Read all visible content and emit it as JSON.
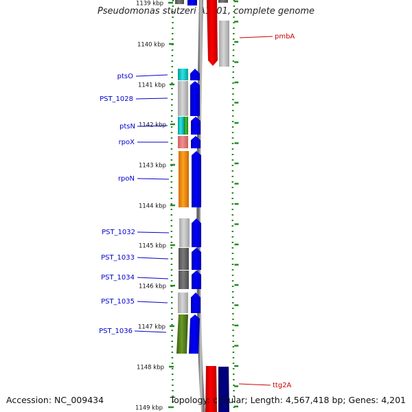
{
  "title": "Pseudomonas stutzeri A1501, complete genome",
  "footer": {
    "accession": "Accession: NC_009434",
    "topology": "Topology: circular; Length: 4,567,418 bp; Genes: 4,201"
  },
  "scale_ticks": [
    "1139 kbp",
    "1140 kbp",
    "1141 kbp",
    "1142 kbp",
    "1143 kbp",
    "1144 kbp",
    "1145 kbp",
    "1146 kbp",
    "1147 kbp",
    "1148 kbp",
    "1149 kbp"
  ],
  "left_labels": [
    {
      "text": "ptsO",
      "color": "#0000cc"
    },
    {
      "text": "PST_1028",
      "color": "#0000cc"
    },
    {
      "text": "ptsN",
      "color": "#0000cc"
    },
    {
      "text": "rpoX",
      "color": "#0000cc"
    },
    {
      "text": "rpoN",
      "color": "#0000cc"
    },
    {
      "text": "PST_1032",
      "color": "#0000cc"
    },
    {
      "text": "PST_1033",
      "color": "#0000cc"
    },
    {
      "text": "PST_1034",
      "color": "#0000cc"
    },
    {
      "text": "PST_1035",
      "color": "#0000cc"
    },
    {
      "text": "PST_1036",
      "color": "#0000cc"
    }
  ],
  "right_labels": [
    {
      "text": "pmbA",
      "color": "#cc0000"
    },
    {
      "text": "ttg2A",
      "color": "#cc0000"
    }
  ],
  "colors": {
    "forward_strand": "#0000ff",
    "reverse_strand": "#ff0000",
    "track_green": "#228b22",
    "left_label": "#0000cc",
    "right_label": "#cc0000"
  }
}
